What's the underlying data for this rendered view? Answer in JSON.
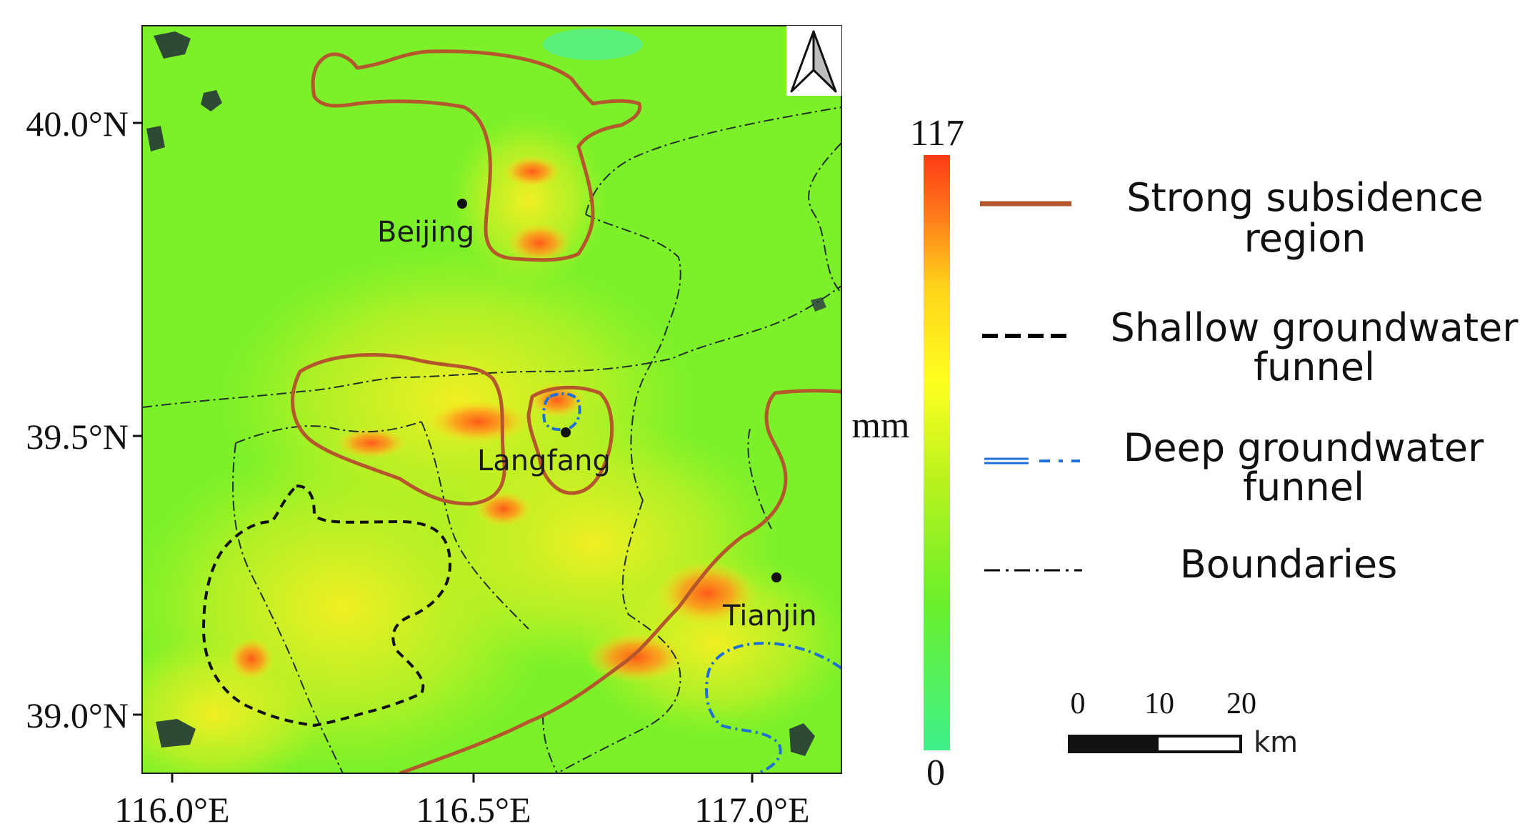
{
  "map": {
    "cities": [
      {
        "name": "Beijing"
      },
      {
        "name": "Langfang"
      },
      {
        "name": "Tianjin"
      }
    ],
    "lat_ticks": [
      "40.0°N",
      "39.5°N",
      "39.0°N"
    ],
    "lon_ticks": [
      "116.0°E",
      "116.5°E",
      "117.0°E"
    ],
    "north_arrow_icon": "north-arrow-icon"
  },
  "colorbar": {
    "max_label": "117",
    "min_label": "0",
    "unit": "mm",
    "colors": [
      "#ff3a16",
      "#ff7a1a",
      "#ffd21a",
      "#ffff1f",
      "#b8f21e",
      "#6bef2a",
      "#3ef08a"
    ]
  },
  "legend": {
    "items": [
      {
        "label_line1": "Strong subsidence",
        "label_line2": "region",
        "color": "#b4572c",
        "style": "solid"
      },
      {
        "label_line1": "Shallow groundwater",
        "label_line2": "funnel",
        "color": "#000000",
        "style": "dashed"
      },
      {
        "label_line1": "Deep groundwater",
        "label_line2": "funnel",
        "color": "#1f6fd6",
        "style": "dash-dot"
      },
      {
        "label_line1": "Boundaries",
        "label_line2": "",
        "color": "#000000",
        "style": "dash-dot-thin"
      }
    ]
  },
  "scalebar": {
    "ticks": [
      "0",
      "10",
      "20"
    ],
    "unit": "km"
  },
  "colors": {
    "map_base": "#7cf12a",
    "subsidence_line": "#b4572c",
    "deep_funnel_line": "#1f6fd6"
  }
}
